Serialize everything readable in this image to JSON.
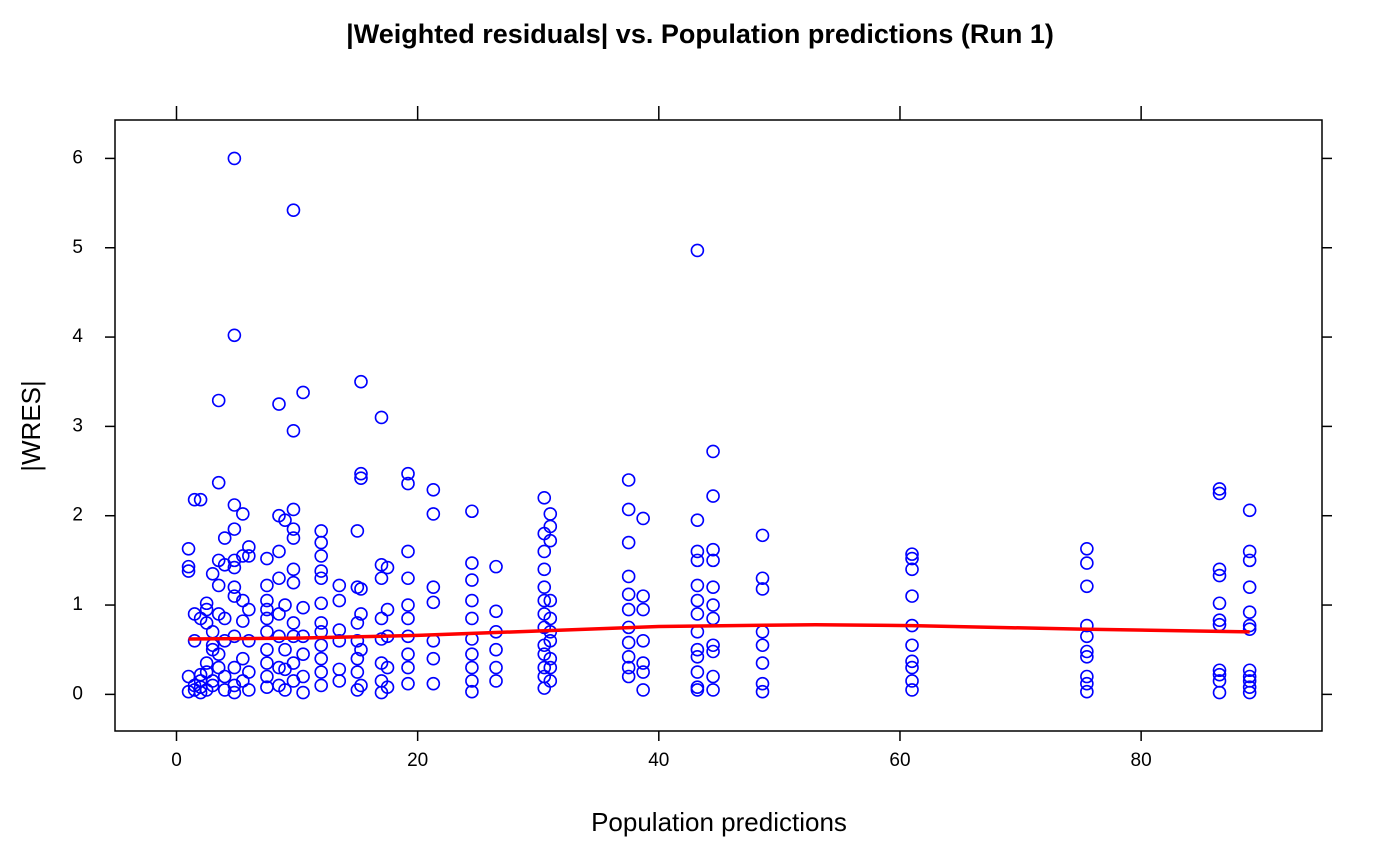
{
  "chart_data": {
    "type": "scatter",
    "title": "|Weighted residuals| vs. Population predictions (Run 1)",
    "x_label": "Population predictions",
    "y_label": "|WRES|",
    "xlim": [
      -5.1,
      95.0
    ],
    "ylim": [
      -0.41,
      6.43
    ],
    "xticks": [
      0,
      20,
      40,
      60,
      80
    ],
    "yticks": [
      0,
      1,
      2,
      3,
      4,
      5,
      6
    ],
    "series": [
      {
        "type": "scatter",
        "color": "#0000ff",
        "x": [
          1.0,
          1.0,
          1.0,
          1.0,
          1.0,
          1.5,
          1.5,
          1.5,
          1.5,
          1.5,
          2.0,
          2.0,
          2.0,
          2.0,
          2.0,
          2.0,
          2.5,
          2.5,
          2.5,
          2.5,
          2.5,
          2.5,
          3.0,
          3.0,
          3.0,
          3.0,
          3.0,
          3.0,
          3.5,
          3.5,
          3.5,
          3.5,
          3.5,
          3.5,
          3.5,
          4.0,
          4.0,
          4.0,
          4.0,
          4.0,
          4.0,
          4.8,
          4.8,
          4.8,
          4.8,
          4.8,
          4.8,
          4.8,
          4.8,
          4.8,
          4.8,
          4.8,
          4.8,
          5.5,
          5.5,
          5.5,
          5.5,
          5.5,
          5.5,
          6.0,
          6.0,
          6.0,
          6.0,
          6.0,
          6.0,
          7.5,
          7.5,
          7.5,
          7.5,
          7.5,
          7.5,
          7.5,
          7.5,
          7.5,
          7.5,
          8.5,
          8.5,
          8.5,
          8.5,
          8.5,
          8.5,
          8.5,
          8.5,
          9.0,
          9.0,
          9.0,
          9.0,
          9.0,
          9.7,
          9.7,
          9.7,
          9.7,
          9.7,
          9.7,
          9.7,
          9.7,
          9.7,
          9.7,
          9.7,
          10.5,
          10.5,
          10.5,
          10.5,
          10.5,
          10.5,
          12.0,
          12.0,
          12.0,
          12.0,
          12.0,
          12.0,
          12.0,
          12.0,
          12.0,
          12.0,
          12.0,
          12.0,
          13.5,
          13.5,
          13.5,
          13.5,
          13.5,
          13.5,
          15.0,
          15.0,
          15.0,
          15.0,
          15.0,
          15.0,
          15.0,
          15.3,
          15.3,
          15.3,
          15.3,
          15.3,
          15.3,
          15.3,
          17.0,
          17.0,
          17.0,
          17.0,
          17.0,
          17.0,
          17.0,
          17.0,
          17.5,
          17.5,
          17.5,
          17.5,
          17.5,
          19.2,
          19.2,
          19.2,
          19.2,
          19.2,
          19.2,
          19.2,
          19.2,
          19.2,
          19.2,
          21.3,
          21.3,
          21.3,
          21.3,
          21.3,
          21.3,
          21.3,
          24.5,
          24.5,
          24.5,
          24.5,
          24.5,
          24.5,
          24.5,
          24.5,
          24.5,
          24.5,
          26.5,
          26.5,
          26.5,
          26.5,
          26.5,
          26.5,
          30.5,
          30.5,
          30.5,
          30.5,
          30.5,
          30.5,
          30.5,
          30.5,
          30.5,
          30.5,
          30.5,
          30.5,
          30.5,
          31.0,
          31.0,
          31.0,
          31.0,
          31.0,
          31.0,
          31.0,
          31.0,
          31.0,
          31.0,
          37.5,
          37.5,
          37.5,
          37.5,
          37.5,
          37.5,
          37.5,
          37.5,
          37.5,
          37.5,
          37.5,
          38.7,
          38.7,
          38.7,
          38.7,
          38.7,
          38.7,
          38.7,
          43.2,
          43.2,
          43.2,
          43.2,
          43.2,
          43.2,
          43.2,
          43.2,
          43.2,
          43.2,
          43.2,
          43.2,
          43.2,
          44.5,
          44.5,
          44.5,
          44.5,
          44.5,
          44.5,
          44.5,
          44.5,
          44.5,
          44.5,
          44.5,
          48.6,
          48.6,
          48.6,
          48.6,
          48.6,
          48.6,
          48.6,
          48.6,
          61.0,
          61.0,
          61.0,
          61.0,
          61.0,
          61.0,
          61.0,
          61.0,
          61.0,
          61.0,
          75.5,
          75.5,
          75.5,
          75.5,
          75.5,
          75.5,
          75.5,
          75.5,
          75.5,
          75.5,
          86.5,
          86.5,
          86.5,
          86.5,
          86.5,
          86.5,
          86.5,
          86.5,
          86.5,
          86.5,
          86.5,
          89.0,
          89.0,
          89.0,
          89.0,
          89.0,
          89.0,
          89.0,
          89.0,
          89.0,
          89.0,
          89.0,
          89.0
        ],
        "values": [
          1.63,
          1.43,
          1.38,
          0.2,
          0.03,
          0.9,
          0.6,
          0.1,
          0.05,
          2.18,
          2.18,
          0.85,
          0.22,
          0.15,
          0.08,
          0.02,
          1.02,
          0.95,
          0.8,
          0.35,
          0.25,
          0.05,
          0.7,
          0.55,
          0.5,
          0.15,
          0.1,
          1.35,
          3.29,
          2.37,
          1.5,
          1.22,
          0.9,
          0.45,
          0.3,
          1.75,
          1.45,
          0.85,
          0.6,
          0.2,
          0.05,
          6.0,
          4.02,
          2.12,
          1.85,
          1.5,
          1.42,
          1.2,
          1.1,
          0.65,
          0.3,
          0.1,
          0.02,
          2.02,
          1.55,
          1.05,
          0.82,
          0.4,
          0.15,
          1.65,
          1.55,
          0.95,
          0.6,
          0.25,
          0.05,
          1.52,
          1.22,
          1.05,
          0.95,
          0.85,
          0.7,
          0.5,
          0.35,
          0.2,
          0.08,
          3.25,
          2.0,
          1.6,
          1.3,
          0.9,
          0.65,
          0.3,
          0.1,
          1.95,
          1.0,
          0.5,
          0.28,
          0.05,
          5.42,
          2.95,
          2.07,
          1.85,
          1.75,
          1.4,
          1.25,
          0.8,
          0.65,
          0.35,
          0.15,
          3.38,
          0.97,
          0.65,
          0.45,
          0.2,
          0.02,
          1.83,
          1.7,
          1.55,
          1.38,
          1.3,
          1.02,
          0.8,
          0.7,
          0.55,
          0.4,
          0.25,
          0.1,
          1.22,
          1.05,
          0.72,
          0.6,
          0.28,
          0.15,
          1.83,
          1.2,
          0.8,
          0.6,
          0.4,
          0.25,
          0.05,
          3.5,
          2.47,
          2.42,
          1.18,
          0.9,
          0.5,
          0.1,
          3.1,
          1.45,
          1.3,
          0.85,
          0.62,
          0.35,
          0.15,
          0.02,
          1.42,
          0.95,
          0.65,
          0.3,
          0.08,
          2.47,
          2.36,
          1.6,
          1.3,
          1.0,
          0.85,
          0.65,
          0.45,
          0.3,
          0.12,
          2.29,
          2.02,
          1.2,
          1.03,
          0.6,
          0.4,
          0.12,
          2.05,
          1.47,
          1.28,
          1.05,
          0.85,
          0.62,
          0.45,
          0.3,
          0.15,
          0.03,
          1.43,
          0.93,
          0.7,
          0.5,
          0.3,
          0.15,
          2.2,
          1.8,
          1.6,
          1.4,
          1.2,
          1.05,
          0.9,
          0.75,
          0.55,
          0.45,
          0.3,
          0.2,
          0.07,
          2.02,
          1.88,
          1.72,
          1.05,
          0.85,
          0.7,
          0.6,
          0.4,
          0.3,
          0.15,
          2.4,
          2.07,
          1.7,
          1.32,
          1.12,
          0.95,
          0.75,
          0.58,
          0.42,
          0.3,
          0.2,
          1.97,
          1.1,
          0.95,
          0.6,
          0.35,
          0.25,
          0.05,
          4.97,
          1.95,
          1.6,
          1.5,
          1.22,
          1.05,
          0.9,
          0.7,
          0.5,
          0.42,
          0.25,
          0.08,
          0.05,
          2.72,
          2.22,
          1.62,
          1.5,
          1.2,
          1.0,
          0.85,
          0.55,
          0.48,
          0.2,
          0.05,
          1.78,
          1.3,
          1.18,
          0.7,
          0.55,
          0.35,
          0.12,
          0.03,
          1.57,
          1.52,
          1.4,
          1.1,
          0.77,
          0.55,
          0.37,
          0.3,
          0.15,
          0.05,
          1.63,
          1.47,
          1.21,
          0.77,
          0.65,
          0.48,
          0.42,
          0.2,
          0.12,
          0.03,
          2.3,
          2.25,
          1.4,
          1.33,
          1.02,
          0.83,
          0.78,
          0.27,
          0.22,
          0.15,
          0.02,
          2.06,
          1.6,
          1.5,
          1.2,
          0.92,
          0.77,
          0.73,
          0.27,
          0.2,
          0.15,
          0.08,
          0.02
        ]
      },
      {
        "type": "line",
        "color": "#ff0000",
        "x": [
          1,
          10,
          20,
          30,
          40,
          53,
          61,
          75,
          89
        ],
        "values": [
          0.62,
          0.63,
          0.66,
          0.71,
          0.76,
          0.78,
          0.77,
          0.73,
          0.7
        ]
      }
    ]
  }
}
